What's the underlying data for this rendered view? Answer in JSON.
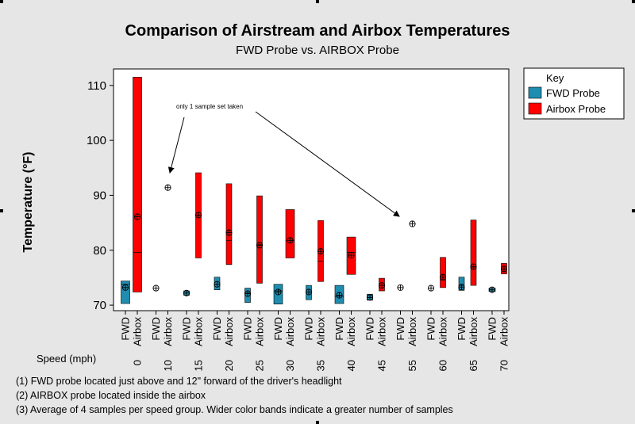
{
  "chart_data": {
    "type": "range-bar",
    "title": "Comparison of Airstream and Airbox Temperatures",
    "subtitle": "FWD Probe vs. AIRBOX Probe",
    "ylabel": "Temperature (°F)",
    "ylim": [
      69,
      113
    ],
    "yticks": [
      70,
      80,
      90,
      100,
      110
    ],
    "group_axis_label": "Speed (mph)",
    "sublevels": [
      "FWD",
      "Airbox"
    ],
    "legend": {
      "title": "Key",
      "placement": "right",
      "entries": [
        {
          "label": "FWD Probe",
          "color": "#1f8db0"
        },
        {
          "label": "Airbox Probe",
          "color": "#ff0000"
        }
      ]
    },
    "groups": [
      {
        "speed": "0",
        "fwd": {
          "low": 70.3,
          "high": 74.4,
          "mean": 73.2,
          "median": 73.8,
          "wide": true
        },
        "airbox": {
          "low": 72.4,
          "high": 111.5,
          "mean": 86.1,
          "median": 79.6,
          "wide": true
        }
      },
      {
        "speed": "10",
        "fwd": {
          "point": 73.1
        },
        "airbox": {
          "point": 91.4
        }
      },
      {
        "speed": "15",
        "fwd": {
          "low": 71.8,
          "high": 72.6,
          "mean": 72.2,
          "median": 72.2,
          "wide": false
        },
        "airbox": {
          "low": 78.6,
          "high": 94.1,
          "mean": 86.4,
          "median": 86.4,
          "wide": false
        }
      },
      {
        "speed": "20",
        "fwd": {
          "low": 72.8,
          "high": 75.1,
          "mean": 73.8,
          "median": 73.8,
          "wide": false
        },
        "airbox": {
          "low": 77.4,
          "high": 92.1,
          "mean": 83.2,
          "median": 81.8,
          "wide": false
        }
      },
      {
        "speed": "25",
        "fwd": {
          "low": 70.5,
          "high": 73.1,
          "mean": 72.1,
          "median": 72.2,
          "wide": false
        },
        "airbox": {
          "low": 74.0,
          "high": 89.9,
          "mean": 80.9,
          "median": 81.0,
          "wide": false
        }
      },
      {
        "speed": "30",
        "fwd": {
          "low": 70.2,
          "high": 73.8,
          "mean": 72.4,
          "median": 72.6,
          "wide": true
        },
        "airbox": {
          "low": 78.6,
          "high": 87.4,
          "mean": 81.8,
          "median": 81.8,
          "wide": true
        }
      },
      {
        "speed": "35",
        "fwd": {
          "low": 71.0,
          "high": 73.6,
          "mean": 72.4,
          "median": 72.4,
          "wide": false
        },
        "airbox": {
          "low": 74.3,
          "high": 85.4,
          "mean": 79.8,
          "median": 78.0,
          "wide": false
        }
      },
      {
        "speed": "40",
        "fwd": {
          "low": 70.3,
          "high": 73.6,
          "mean": 71.8,
          "median": 71.6,
          "wide": true
        },
        "airbox": {
          "low": 75.6,
          "high": 82.4,
          "mean": 79.1,
          "median": 79.6,
          "wide": true
        }
      },
      {
        "speed": "45",
        "fwd": {
          "low": 70.9,
          "high": 72.0,
          "mean": 71.4,
          "median": 71.4,
          "wide": false
        },
        "airbox": {
          "low": 72.6,
          "high": 74.9,
          "mean": 73.6,
          "median": 73.6,
          "wide": false
        }
      },
      {
        "speed": "55",
        "fwd": {
          "point": 73.2
        },
        "airbox": {
          "point": 84.8
        }
      },
      {
        "speed": "60",
        "fwd": {
          "point": 73.1
        },
        "airbox": {
          "low": 73.2,
          "high": 78.7,
          "mean": 75.1,
          "median": 74.6,
          "wide": false
        }
      },
      {
        "speed": "65",
        "fwd": {
          "low": 72.7,
          "high": 75.1,
          "mean": 73.3,
          "median": 73.6,
          "wide": false
        },
        "airbox": {
          "low": 73.6,
          "high": 85.5,
          "mean": 77.0,
          "median": 76.8,
          "wide": false
        }
      },
      {
        "speed": "70",
        "fwd": {
          "point": 72.8,
          "small_bar": true
        },
        "airbox": {
          "low": 75.7,
          "high": 77.6,
          "mean": 76.6,
          "median": 76.6,
          "wide": false
        }
      }
    ],
    "annotation": "only 1 sample set taken",
    "notes": [
      "(1) FWD probe located just above and 12\" forward of the driver's headlight",
      "(2) AIRBOX probe located inside the airbox",
      "(3) Average of 4 samples per speed group. Wider color bands indicate a greater number of samples"
    ]
  }
}
